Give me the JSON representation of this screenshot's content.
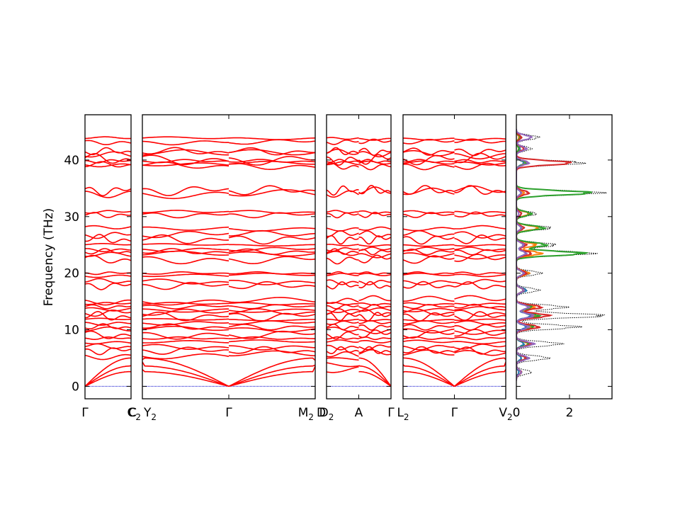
{
  "chart_data": {
    "type": "line",
    "title": "",
    "ylabel": "Frequency (THz)",
    "ylim": [
      -2.2,
      48
    ],
    "yticks": [
      0,
      10,
      20,
      30,
      40
    ],
    "band_color": "#ff0000",
    "zero_line_color": "#0000cc",
    "dos_total_color": "#000000",
    "panels": [
      {
        "id": "p1",
        "labels": [
          "Γ",
          "C"
        ],
        "x_range": [
          0,
          1
        ]
      },
      {
        "id": "p2",
        "labels": [
          "C2|Y2",
          "Γ",
          "M2|D"
        ],
        "x_range": [
          0,
          2
        ]
      },
      {
        "id": "p3",
        "labels": [
          "D2",
          "A",
          "Γ"
        ],
        "x_range": [
          0,
          2
        ]
      },
      {
        "id": "p4",
        "labels": [
          "L2",
          "Γ",
          "V2"
        ],
        "x_range": [
          0,
          2
        ]
      }
    ],
    "band_levels_thz": [
      43.8,
      43.2,
      41.5,
      41.0,
      40.2,
      39.8,
      39.3,
      39.0,
      34.6,
      34.3,
      30.8,
      30.3,
      28.0,
      26.8,
      26.0,
      25.0,
      24.2,
      23.8,
      23.2,
      22.5,
      20.0,
      19.6,
      18.5,
      17.8,
      15.2,
      14.6,
      14.1,
      13.6,
      13.0,
      12.4,
      11.8,
      11.2,
      10.5,
      9.9,
      9.2,
      8.5,
      7.8,
      7.0,
      6.3,
      5.6,
      4.8,
      3.9,
      3.0
    ],
    "dos": {
      "xlim": [
        0,
        3.6
      ],
      "xticks": [
        0,
        2
      ],
      "series": [
        {
          "name": "total",
          "color": "#000000",
          "style": "dotted"
        },
        {
          "color": "#1f77b4"
        },
        {
          "color": "#ff7f0e"
        },
        {
          "color": "#2ca02c"
        },
        {
          "color": "#d62728"
        },
        {
          "color": "#9467bd"
        }
      ],
      "peaks": [
        {
          "f": 44.0,
          "total": 0.9,
          "parts": [
            0.2,
            0.1,
            0.15,
            0.2,
            0.6
          ]
        },
        {
          "f": 42.0,
          "total": 0.6,
          "parts": [
            0.15,
            0.1,
            0.1,
            0.3,
            0.4
          ]
        },
        {
          "f": 39.5,
          "total": 2.7,
          "parts": [
            0.3,
            0.4,
            0.4,
            2.2,
            0.5
          ]
        },
        {
          "f": 34.2,
          "total": 3.4,
          "parts": [
            0.2,
            0.3,
            3.0,
            0.5,
            0.2
          ]
        },
        {
          "f": 30.5,
          "total": 0.8,
          "parts": [
            0.2,
            0.5,
            0.6,
            0.2,
            0.1
          ]
        },
        {
          "f": 28.0,
          "total": 1.4,
          "parts": [
            0.2,
            0.9,
            1.1,
            0.3,
            0.2
          ]
        },
        {
          "f": 25.0,
          "total": 1.6,
          "parts": [
            0.3,
            0.8,
            1.2,
            0.4,
            0.3
          ]
        },
        {
          "f": 23.5,
          "total": 3.1,
          "parts": [
            0.4,
            1.0,
            2.7,
            0.6,
            0.4
          ]
        },
        {
          "f": 20.0,
          "total": 1.0,
          "parts": [
            0.5,
            0.5,
            0.3,
            0.4,
            0.3
          ]
        },
        {
          "f": 17.0,
          "total": 0.9,
          "parts": [
            0.4,
            0.3,
            0.3,
            0.3,
            0.3
          ]
        },
        {
          "f": 14.0,
          "total": 2.0,
          "parts": [
            0.5,
            0.7,
            0.6,
            1.0,
            0.5
          ]
        },
        {
          "f": 12.5,
          "total": 3.6,
          "parts": [
            0.6,
            0.8,
            0.9,
            1.3,
            0.7
          ]
        },
        {
          "f": 10.5,
          "total": 2.5,
          "parts": [
            0.4,
            0.6,
            0.7,
            0.9,
            0.5
          ]
        },
        {
          "f": 7.5,
          "total": 1.8,
          "parts": [
            0.3,
            0.5,
            0.5,
            0.6,
            0.7
          ]
        },
        {
          "f": 5.0,
          "total": 1.3,
          "parts": [
            0.2,
            0.4,
            0.4,
            0.4,
            0.5
          ]
        },
        {
          "f": 2.5,
          "total": 0.6,
          "parts": [
            0.1,
            0.2,
            0.2,
            0.2,
            0.2
          ]
        }
      ]
    }
  }
}
